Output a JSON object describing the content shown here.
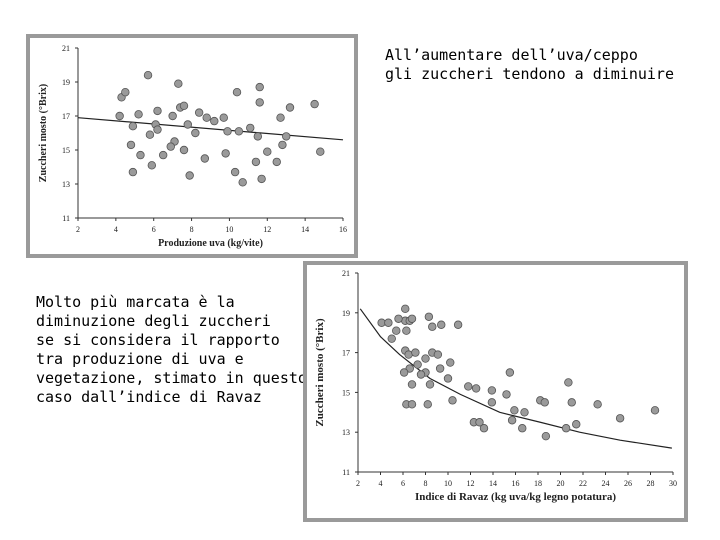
{
  "texts": {
    "top": [
      "All’aumentare dell’uva/ceppo",
      "gli zuccheri tendono a diminuire"
    ],
    "left": [
      "Molto più marcata è la",
      "diminuzione degli zuccheri",
      "se si considera il rapporto",
      "tra produzione di uva e",
      "vegetazione, stimato in questo",
      "caso dall’indice di Ravaz"
    ]
  },
  "chart_data": [
    {
      "type": "scatter",
      "xlabel": "Produzione uva (kg/vite)",
      "ylabel": "Zuccheri mosto (°Brix)",
      "color": "#9a9a9a",
      "x": [
        4.3,
        4.5,
        5.7,
        7.3,
        10.4,
        11.6,
        13.2,
        14.5,
        11.6,
        4.2,
        5.2,
        6.2,
        7.4,
        7.6,
        7.0,
        8.4,
        8.8,
        9.2,
        9.7,
        4.9,
        6.1,
        5.8,
        6.2,
        7.8,
        8.2,
        9.9,
        11.1,
        11.5,
        12.7,
        10.5,
        7.1,
        6.9,
        4.8,
        5.3,
        6.5,
        7.6,
        8.7,
        9.8,
        11.4,
        12.0,
        12.8,
        14.8,
        5.9,
        4.9,
        7.9,
        10.3,
        10.7,
        11.7,
        12.5,
        13.0
      ],
      "values": [
        18.1,
        18.4,
        19.4,
        18.9,
        18.4,
        18.7,
        17.5,
        17.7,
        17.8,
        17.0,
        17.1,
        17.3,
        17.5,
        17.6,
        17.0,
        17.2,
        16.9,
        16.7,
        16.9,
        16.4,
        16.5,
        15.9,
        16.2,
        16.5,
        16.0,
        16.1,
        16.3,
        15.8,
        16.9,
        16.1,
        15.5,
        15.2,
        15.3,
        14.7,
        14.7,
        15.0,
        14.5,
        14.8,
        14.3,
        14.9,
        15.3,
        14.9,
        14.1,
        13.7,
        13.5,
        13.7,
        13.1,
        13.3,
        14.3,
        15.8
      ],
      "trend": {
        "x": [
          2,
          16
        ],
        "values": [
          16.9,
          15.6
        ]
      },
      "xlim": [
        2,
        16
      ],
      "ylim": [
        11,
        21
      ],
      "xticks": [
        2,
        4,
        6,
        8,
        10,
        12,
        14,
        16
      ],
      "yticks": [
        11,
        13,
        15,
        17,
        19,
        21
      ]
    },
    {
      "type": "scatter",
      "xlabel": "Indice di Ravaz (kg uva/kg legno potatura)",
      "ylabel": "Zuccheri mosto (°Brix)",
      "color": "#9a9a9a",
      "x": [
        4.1,
        4.7,
        5.4,
        5.0,
        6.2,
        6.2,
        6.6,
        6.3,
        6.8,
        5.6,
        8.3,
        8.6,
        9.4,
        10.9,
        6.2,
        6.5,
        7.1,
        7.3,
        8.0,
        8.6,
        9.1,
        8.0,
        9.3,
        10.0,
        10.2,
        6.6,
        6.1,
        6.8,
        7.6,
        8.4,
        11.8,
        12.5,
        13.9,
        13.9,
        15.5,
        15.2,
        10.4,
        8.2,
        6.3,
        6.8,
        12.3,
        13.2,
        12.8,
        15.7,
        16.6,
        18.2,
        18.6,
        18.7,
        20.5,
        20.7,
        21.0,
        21.4,
        23.3,
        25.3,
        28.4,
        16.8,
        15.9
      ],
      "values": [
        18.5,
        18.5,
        18.1,
        17.7,
        18.6,
        19.2,
        18.6,
        18.1,
        18.7,
        18.7,
        18.8,
        18.3,
        18.4,
        18.4,
        17.1,
        16.9,
        17.0,
        16.4,
        16.7,
        17.0,
        16.9,
        16.0,
        16.2,
        15.7,
        16.5,
        16.2,
        16.0,
        15.4,
        15.9,
        15.4,
        15.3,
        15.2,
        15.1,
        14.5,
        16.0,
        14.9,
        14.6,
        14.4,
        14.4,
        14.4,
        13.5,
        13.2,
        13.5,
        13.6,
        13.2,
        14.6,
        14.5,
        12.8,
        13.2,
        15.5,
        14.5,
        13.4,
        14.4,
        13.7,
        14.1,
        14.0,
        14.1
      ],
      "trend": {
        "x": [
          2.2,
          4.0,
          5.7,
          8.4,
          11.1,
          14.6,
          18.2,
          21.7,
          25.3,
          29.9
        ],
        "values": [
          19.2,
          17.8,
          16.9,
          15.7,
          14.9,
          14.0,
          13.5,
          13.0,
          12.6,
          12.2
        ]
      },
      "xlim": [
        2,
        30
      ],
      "ylim": [
        11,
        21
      ],
      "xticks": [
        2,
        4,
        6,
        8,
        10,
        12,
        14,
        16,
        18,
        20,
        22,
        24,
        26,
        28,
        30
      ],
      "yticks": [
        11,
        13,
        15,
        17,
        19,
        21
      ]
    }
  ]
}
